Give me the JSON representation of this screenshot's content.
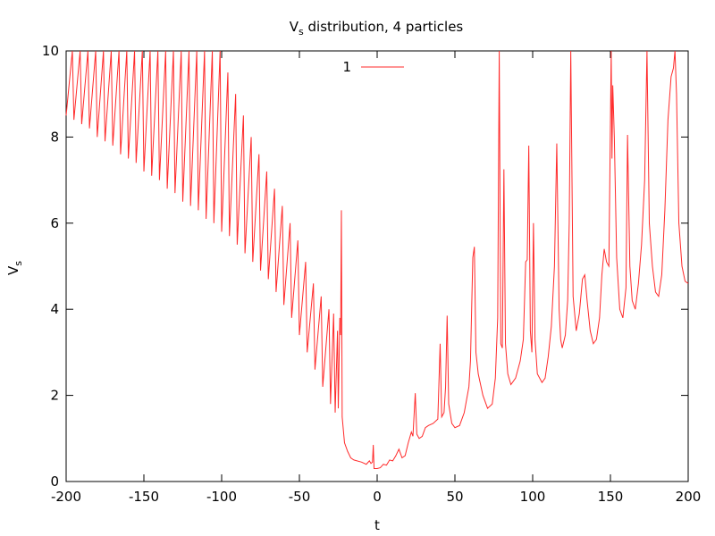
{
  "chart_data": {
    "type": "line",
    "title": {
      "main": "V",
      "sub": "s",
      "rest": " distribution, 4 particles"
    },
    "xlabel": "t",
    "ylabel": {
      "main": "V",
      "sub": "s"
    },
    "xlim": [
      -200,
      200
    ],
    "ylim": [
      0,
      10
    ],
    "x_ticks": [
      -200,
      -150,
      -100,
      -50,
      0,
      50,
      100,
      150,
      200
    ],
    "x_tick_labels": [
      "-200",
      "-150",
      "-100",
      "-50",
      "0",
      "50",
      "100",
      "150",
      "200"
    ],
    "y_ticks": [
      0,
      2,
      4,
      6,
      8,
      10
    ],
    "y_tick_labels": [
      "0",
      "2",
      "4",
      "6",
      "8",
      "10"
    ],
    "grid": false,
    "legend_position": "top-center",
    "series": [
      {
        "name": "1",
        "color": "#ff0000",
        "line_color": "#ff2a2a",
        "points": [
          [
            -200,
            8.5
          ],
          [
            -196,
            10.0
          ],
          [
            -195,
            8.4
          ],
          [
            -191,
            10.0
          ],
          [
            -190,
            8.3
          ],
          [
            -186,
            10.0
          ],
          [
            -185,
            8.2
          ],
          [
            -181,
            10.0
          ],
          [
            -180,
            8.0
          ],
          [
            -176,
            10.0
          ],
          [
            -175,
            7.9
          ],
          [
            -171,
            10.0
          ],
          [
            -170,
            7.8
          ],
          [
            -166,
            10.0
          ],
          [
            -165,
            7.6
          ],
          [
            -161,
            10.0
          ],
          [
            -160,
            7.5
          ],
          [
            -156,
            10.0
          ],
          [
            -155,
            7.4
          ],
          [
            -151,
            10.0
          ],
          [
            -150,
            7.2
          ],
          [
            -146,
            10.0
          ],
          [
            -145,
            7.1
          ],
          [
            -141,
            10.0
          ],
          [
            -140,
            7.0
          ],
          [
            -136,
            10.0
          ],
          [
            -135,
            6.8
          ],
          [
            -131,
            10.0
          ],
          [
            -130,
            6.7
          ],
          [
            -126,
            10.0
          ],
          [
            -125,
            6.5
          ],
          [
            -121,
            10.0
          ],
          [
            -120,
            6.4
          ],
          [
            -116,
            10.0
          ],
          [
            -115,
            6.3
          ],
          [
            -111,
            10.0
          ],
          [
            -110,
            6.1
          ],
          [
            -106,
            10.0
          ],
          [
            -105,
            6.0
          ],
          [
            -101,
            10.0
          ],
          [
            -100,
            5.8
          ],
          [
            -96,
            9.5
          ],
          [
            -95,
            5.7
          ],
          [
            -91,
            9.0
          ],
          [
            -90,
            5.5
          ],
          [
            -86,
            8.5
          ],
          [
            -85,
            5.3
          ],
          [
            -81,
            8.0
          ],
          [
            -80,
            5.1
          ],
          [
            -76,
            7.6
          ],
          [
            -75,
            4.9
          ],
          [
            -71,
            7.2
          ],
          [
            -70,
            4.7
          ],
          [
            -66,
            6.8
          ],
          [
            -65,
            4.4
          ],
          [
            -61,
            6.4
          ],
          [
            -60,
            4.1
          ],
          [
            -56,
            6.0
          ],
          [
            -55,
            3.8
          ],
          [
            -51,
            5.6
          ],
          [
            -50,
            3.4
          ],
          [
            -46,
            5.1
          ],
          [
            -45,
            3.0
          ],
          [
            -41,
            4.6
          ],
          [
            -40,
            2.6
          ],
          [
            -36,
            4.3
          ],
          [
            -35,
            2.2
          ],
          [
            -31,
            4.0
          ],
          [
            -30,
            1.8
          ],
          [
            -28,
            3.9
          ],
          [
            -27,
            1.6
          ],
          [
            -25.5,
            3.5
          ],
          [
            -25,
            1.7
          ],
          [
            -24,
            3.8
          ],
          [
            -23.5,
            3.4
          ],
          [
            -23,
            6.3
          ],
          [
            -22.5,
            1.5
          ],
          [
            -21,
            0.9
          ],
          [
            -19,
            0.7
          ],
          [
            -17,
            0.55
          ],
          [
            -15,
            0.5
          ],
          [
            -10,
            0.45
          ],
          [
            -7,
            0.4
          ],
          [
            -5,
            0.48
          ],
          [
            -4,
            0.42
          ],
          [
            -3,
            0.45
          ],
          [
            -2.5,
            0.85
          ],
          [
            -2,
            0.3
          ],
          [
            0,
            0.3
          ],
          [
            2,
            0.32
          ],
          [
            4,
            0.4
          ],
          [
            6,
            0.38
          ],
          [
            8,
            0.5
          ],
          [
            10,
            0.48
          ],
          [
            12,
            0.6
          ],
          [
            14,
            0.75
          ],
          [
            16,
            0.55
          ],
          [
            18,
            0.6
          ],
          [
            20,
            0.9
          ],
          [
            22,
            1.15
          ],
          [
            23,
            1.05
          ],
          [
            24.5,
            2.05
          ],
          [
            25.5,
            1.1
          ],
          [
            27,
            1.0
          ],
          [
            29,
            1.05
          ],
          [
            31,
            1.25
          ],
          [
            33,
            1.3
          ],
          [
            36,
            1.35
          ],
          [
            39,
            1.45
          ],
          [
            40.5,
            3.2
          ],
          [
            41.5,
            1.5
          ],
          [
            43,
            1.6
          ],
          [
            44,
            2.2
          ],
          [
            45,
            3.85
          ],
          [
            46,
            1.8
          ],
          [
            48,
            1.35
          ],
          [
            50,
            1.25
          ],
          [
            53,
            1.3
          ],
          [
            56,
            1.6
          ],
          [
            59,
            2.2
          ],
          [
            60,
            2.8
          ],
          [
            61.5,
            5.2
          ],
          [
            62.5,
            5.45
          ],
          [
            63.5,
            3.0
          ],
          [
            65,
            2.5
          ],
          [
            68,
            2.0
          ],
          [
            71,
            1.7
          ],
          [
            74,
            1.8
          ],
          [
            76,
            2.4
          ],
          [
            77.5,
            3.8
          ],
          [
            78.5,
            10.0
          ],
          [
            79.5,
            3.2
          ],
          [
            80.5,
            3.1
          ],
          [
            81.5,
            7.25
          ],
          [
            82.5,
            3.2
          ],
          [
            84,
            2.5
          ],
          [
            86,
            2.25
          ],
          [
            89,
            2.4
          ],
          [
            92,
            2.8
          ],
          [
            94,
            3.3
          ],
          [
            95.5,
            5.1
          ],
          [
            96.5,
            5.15
          ],
          [
            97.5,
            7.8
          ],
          [
            98.5,
            3.5
          ],
          [
            99.5,
            3.0
          ],
          [
            100.5,
            6.0
          ],
          [
            101.5,
            3.3
          ],
          [
            103,
            2.5
          ],
          [
            106,
            2.3
          ],
          [
            108,
            2.4
          ],
          [
            110,
            2.9
          ],
          [
            112,
            3.6
          ],
          [
            114,
            5.0
          ],
          [
            115.5,
            7.85
          ],
          [
            117,
            4.0
          ],
          [
            118,
            3.3
          ],
          [
            119,
            3.1
          ],
          [
            121,
            3.4
          ],
          [
            122.5,
            4.2
          ],
          [
            123.5,
            6.0
          ],
          [
            124.5,
            10.0
          ],
          [
            126,
            4.3
          ],
          [
            128,
            3.5
          ],
          [
            130,
            3.9
          ],
          [
            132,
            4.7
          ],
          [
            133.5,
            4.8
          ],
          [
            135,
            4.2
          ],
          [
            137,
            3.5
          ],
          [
            139,
            3.2
          ],
          [
            141,
            3.3
          ],
          [
            143,
            3.8
          ],
          [
            144.5,
            4.8
          ],
          [
            146,
            5.4
          ],
          [
            147.5,
            5.1
          ],
          [
            149,
            5.0
          ],
          [
            150.5,
            10.0
          ],
          [
            151,
            7.5
          ],
          [
            151.5,
            9.2
          ],
          [
            152.5,
            8.0
          ],
          [
            154,
            5.2
          ],
          [
            156,
            4.0
          ],
          [
            158,
            3.8
          ],
          [
            160,
            4.5
          ],
          [
            161,
            8.05
          ],
          [
            162.5,
            5.0
          ],
          [
            164,
            4.2
          ],
          [
            166,
            4.0
          ],
          [
            168,
            4.6
          ],
          [
            170,
            5.5
          ],
          [
            172,
            7.0
          ],
          [
            173.5,
            10.0
          ],
          [
            175,
            6.0
          ],
          [
            177,
            5.0
          ],
          [
            179,
            4.4
          ],
          [
            181,
            4.3
          ],
          [
            183,
            4.8
          ],
          [
            185,
            6.3
          ],
          [
            187,
            8.4
          ],
          [
            189,
            9.4
          ],
          [
            190.5,
            9.6
          ],
          [
            191.5,
            10.0
          ],
          [
            192.5,
            9.0
          ],
          [
            194,
            6.0
          ],
          [
            196,
            5.0
          ],
          [
            198,
            4.65
          ],
          [
            200,
            4.6
          ]
        ]
      }
    ]
  }
}
